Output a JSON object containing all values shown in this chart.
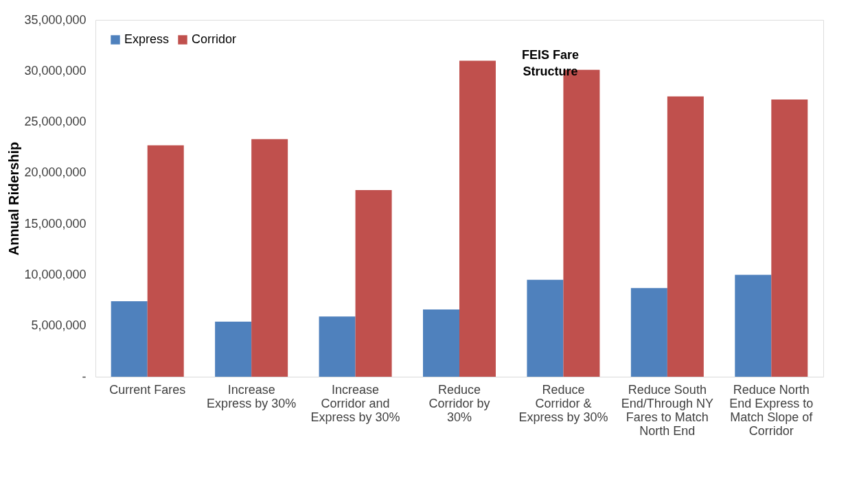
{
  "chart_data": {
    "type": "bar",
    "ylabel": "Annual Ridership",
    "categories": [
      "Current Fares",
      "Increase Express by 30%",
      "Increase Corridor and Express by 30%",
      "Reduce Corridor by 30%",
      "Reduce Corridor & Express by 30%",
      "Reduce South End/Through NY Fares to Match North End",
      "Reduce North End Express to Match Slope of Corridor"
    ],
    "series": [
      {
        "name": "Express",
        "color": "#4f81bd",
        "values": [
          7400000,
          5400000,
          5900000,
          6600000,
          9500000,
          8700000,
          10000000
        ]
      },
      {
        "name": "Corridor",
        "color": "#c0504d",
        "values": [
          22700000,
          23300000,
          18300000,
          31000000,
          30100000,
          27500000,
          27200000
        ]
      }
    ],
    "ylim": [
      0,
      35000000
    ],
    "yticks": [
      {
        "value": 0,
        "label": "-"
      },
      {
        "value": 5000000,
        "label": "5,000,000"
      },
      {
        "value": 10000000,
        "label": "10,000,000"
      },
      {
        "value": 15000000,
        "label": "15,000,000"
      },
      {
        "value": 20000000,
        "label": "20,000,000"
      },
      {
        "value": 25000000,
        "label": "25,000,000"
      },
      {
        "value": 30000000,
        "label": "30,000,000"
      },
      {
        "value": 35000000,
        "label": "35,000,000"
      }
    ],
    "annotations": [
      {
        "text": "FEIS Fare Structure",
        "x": "Reduce Corridor & Express by 30%",
        "y": 30100000
      }
    ],
    "legend": "top left",
    "grid": false
  }
}
